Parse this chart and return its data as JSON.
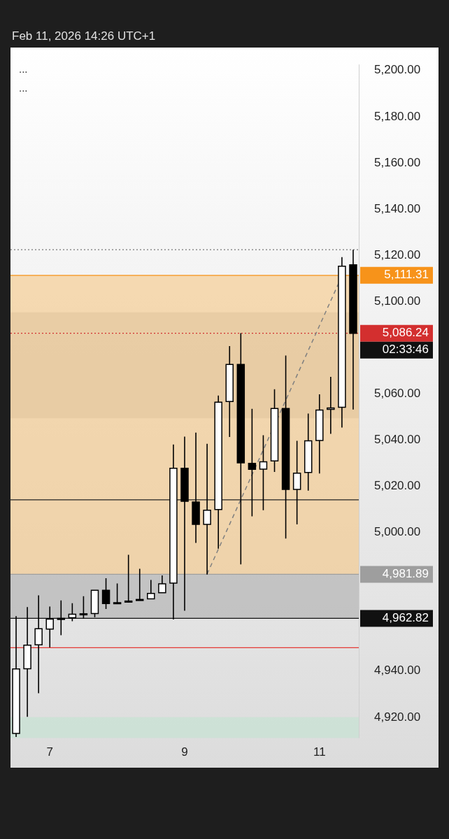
{
  "chart_data": {
    "type": "candlestick",
    "subtitle": "Feb 11, 2026 14:26 UTC+1",
    "categories": [
      null,
      null,
      null,
      "7",
      null,
      null,
      null,
      null,
      null,
      null,
      null,
      null,
      null,
      null,
      null,
      "9",
      null,
      null,
      null,
      null,
      null,
      null,
      null,
      null,
      null,
      null,
      null,
      "11",
      null,
      null,
      null
    ],
    "color": "#000000",
    "ohlc": [
      [
        4913,
        4963.8,
        4911.5,
        4940.9
      ],
      [
        4941,
        4967.7,
        4920.2,
        4951.2
      ],
      [
        4951.4,
        4972.8,
        4930.4,
        4958.3
      ],
      [
        4958.2,
        4967.9,
        4950.2,
        4962.5
      ],
      [
        4962.8,
        4970.6,
        4955.5,
        4962.5
      ],
      [
        4963.1,
        4969.4,
        4961.6,
        4964.6
      ],
      [
        4964.6,
        4972.4,
        4962.6,
        4964.8
      ],
      [
        4964.9,
        4975,
        4963.3,
        4975
      ],
      [
        4975,
        4980.2,
        4966.9,
        4969.2
      ],
      [
        4969.6,
        4977.9,
        4969,
        4969.2
      ],
      [
        4970.3,
        4990.3,
        4969.8,
        4970.1
      ],
      [
        4971,
        4984.3,
        4970.5,
        4970.8
      ],
      [
        4971.3,
        4979.4,
        4971.3,
        4973.6
      ],
      [
        4973.9,
        4981.4,
        4973.9,
        4977.8
      ],
      [
        4978.1,
        5038.1,
        4962.3,
        5027.8
      ],
      [
        5027.8,
        5041.5,
        4966.1,
        5013.5
      ],
      [
        5013.2,
        5043.2,
        4995.5,
        5003.5
      ],
      [
        5003.5,
        5038.4,
        4981.8,
        5009.6
      ],
      [
        5009.9,
        5059.3,
        4993,
        5056.4
      ],
      [
        5056.7,
        5080.7,
        5041.3,
        5072.7
      ],
      [
        5072.7,
        5086.3,
        4986.2,
        5030.1
      ],
      [
        5029.9,
        5053.5,
        5007,
        5027.3
      ],
      [
        5027.4,
        5042.1,
        5009.6,
        5030.6
      ],
      [
        5031,
        5062,
        5026.2,
        5053.7
      ],
      [
        5053.7,
        5076.6,
        4997.4,
        5018.6
      ],
      [
        5018.6,
        5039.7,
        5003.5,
        5025.7
      ],
      [
        5026,
        5051.5,
        5018.1,
        5039.7
      ],
      [
        5039.8,
        5059.8,
        5025.5,
        5053
      ],
      [
        5053.3,
        5067.4,
        5042.7,
        5053.9
      ],
      [
        5054.2,
        5119.2,
        5045.4,
        5115.3
      ],
      [
        5115.9,
        5122.4,
        5053.2,
        5086.24
      ]
    ],
    "series": [
      {
        "type": "line",
        "color": "#808080",
        "line_style": "dashed",
        "values": [
          null,
          null,
          null,
          null,
          null,
          null,
          null,
          null,
          null,
          null,
          null,
          null,
          null,
          null,
          null,
          null,
          null,
          4982,
          null,
          null,
          null,
          null,
          null,
          null,
          null,
          null,
          null,
          null,
          null,
          5111,
          null
        ]
      }
    ],
    "ylim": [
      4911,
      5202.6
    ],
    "yticks": [
      {
        "value": 4920,
        "label": "4,920.00"
      },
      {
        "value": 4940,
        "label": "4,940.00"
      },
      {
        "value": 5000,
        "label": "5,000.00"
      },
      {
        "value": 5020,
        "label": "5,020.00"
      },
      {
        "value": 5040,
        "label": "5,040.00"
      },
      {
        "value": 5060,
        "label": "5,060.00"
      },
      {
        "value": 5100,
        "label": "5,100.00"
      },
      {
        "value": 5120,
        "label": "5,120.00"
      },
      {
        "value": 5140,
        "label": "5,140.00"
      },
      {
        "value": 5160,
        "label": "5,160.00"
      },
      {
        "value": 5180,
        "label": "5,180.00"
      },
      {
        "value": 5200,
        "label": "5,200.00"
      }
    ],
    "bands": [
      {
        "axis": "y",
        "from": 5049.4,
        "to": 5095.3,
        "color": "#c4c4c4"
      },
      {
        "axis": "y",
        "from": 4981.89,
        "to": 5111.31,
        "color": "#f5c27a"
      },
      {
        "axis": "y",
        "from": 4962.82,
        "to": 4981.89,
        "color": "#a8a8a8"
      },
      {
        "axis": "y",
        "from": 4911,
        "to": 4920,
        "color": "#bfe3d0"
      }
    ],
    "ref_lines": [
      {
        "axis": "y",
        "value": 5122.4,
        "color": "#777777",
        "line_style": "dotted"
      },
      {
        "axis": "y",
        "value": 5111.31,
        "label": "5,111.31",
        "color": "#f7931a",
        "line_style": "solid"
      },
      {
        "axis": "y",
        "value": 5086.24,
        "label": "5,086.24",
        "color": "#d32f2f",
        "line_style": "dotted"
      },
      {
        "axis": "y",
        "value": 5014.1,
        "color": "#222222",
        "line_style": "solid"
      },
      {
        "axis": "y",
        "value": 4981.89,
        "label": "4,981.89",
        "color": "#9e9e9e",
        "line_style": "solid"
      },
      {
        "axis": "y",
        "value": 4962.82,
        "label": "4,962.82",
        "color": "#111111",
        "line_style": "solid"
      },
      {
        "axis": "y",
        "value": 4950.1,
        "color": "#e53935",
        "line_style": "solid"
      }
    ],
    "annotations": [
      "...",
      "...",
      "02:33:46"
    ]
  }
}
